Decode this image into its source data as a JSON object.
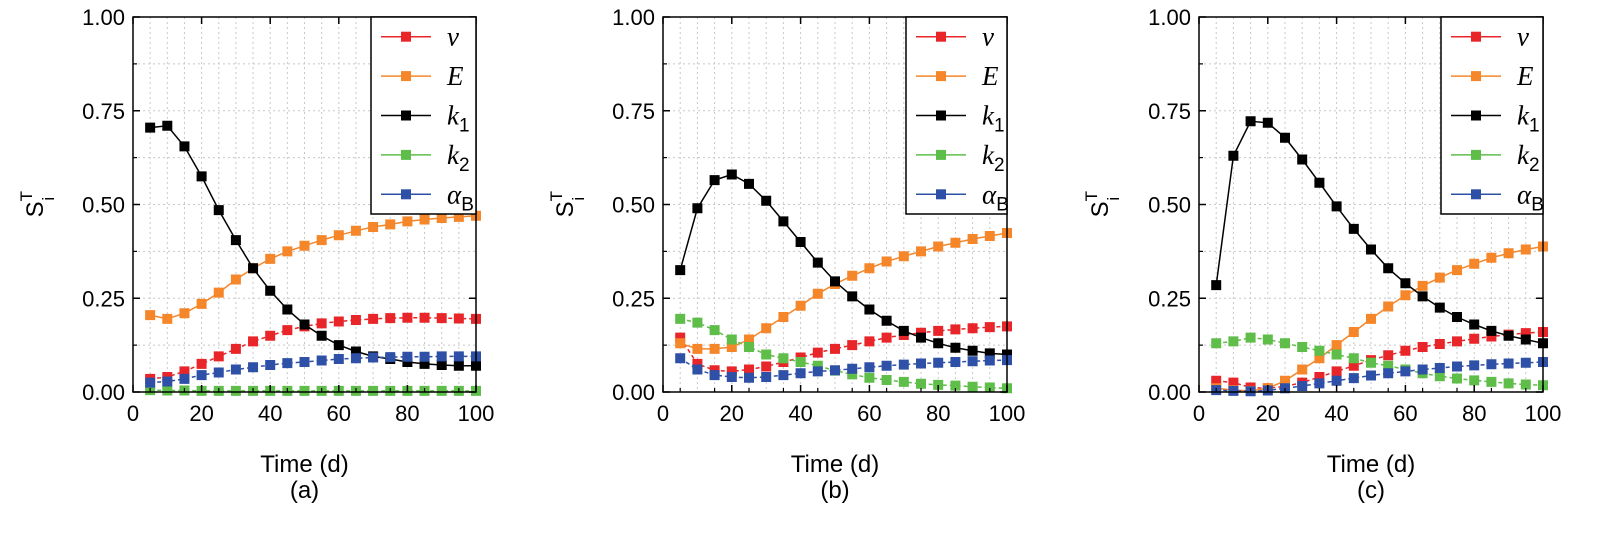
{
  "figure": {
    "colors": {
      "v": "#e8262a",
      "E": "#f5862a",
      "k1": "#000000",
      "k2": "#5fbd4a",
      "alphaB": "#2e50a6"
    },
    "series_keys": [
      "v",
      "E",
      "k1",
      "k2",
      "alphaB"
    ]
  },
  "chart_data": [
    {
      "type": "line",
      "panel_label": "(a)",
      "xlabel": "Time (d)",
      "ylabel": {
        "main": "S",
        "sup": "T",
        "sub": "i"
      },
      "xlim": [
        0,
        100
      ],
      "ylim": [
        0,
        1
      ],
      "xticks": [
        "0",
        "20",
        "40",
        "60",
        "80",
        "100"
      ],
      "yticks": [
        "0.00",
        "0.25",
        "0.50",
        "0.75",
        "1.00"
      ],
      "grid": true,
      "legend_position": "top-right",
      "x": [
        5,
        10,
        15,
        20,
        25,
        30,
        35,
        40,
        45,
        50,
        55,
        60,
        65,
        70,
        75,
        80,
        85,
        90,
        95,
        100
      ],
      "series": [
        {
          "key": "v",
          "name": "v",
          "style": "dashed",
          "values": [
            0.035,
            0.04,
            0.055,
            0.075,
            0.095,
            0.115,
            0.135,
            0.15,
            0.165,
            0.175,
            0.183,
            0.188,
            0.192,
            0.195,
            0.197,
            0.198,
            0.198,
            0.197,
            0.196,
            0.195
          ]
        },
        {
          "key": "E",
          "name": "E",
          "style": "solid-dashed",
          "values": [
            0.205,
            0.195,
            0.21,
            0.235,
            0.265,
            0.3,
            0.33,
            0.355,
            0.375,
            0.39,
            0.405,
            0.418,
            0.43,
            0.44,
            0.447,
            0.455,
            0.46,
            0.464,
            0.467,
            0.47
          ]
        },
        {
          "key": "k1",
          "name": "k1",
          "style": "solid",
          "values": [
            0.705,
            0.71,
            0.655,
            0.575,
            0.485,
            0.405,
            0.33,
            0.27,
            0.22,
            0.18,
            0.15,
            0.125,
            0.108,
            0.095,
            0.088,
            0.08,
            0.075,
            0.072,
            0.07,
            0.07
          ]
        },
        {
          "key": "k2",
          "name": "k2",
          "style": "dashed",
          "values": [
            0.005,
            0.004,
            0.004,
            0.003,
            0.003,
            0.003,
            0.003,
            0.003,
            0.003,
            0.003,
            0.003,
            0.003,
            0.003,
            0.003,
            0.003,
            0.003,
            0.003,
            0.003,
            0.003,
            0.003
          ]
        },
        {
          "key": "alphaB",
          "name": "αB",
          "style": "dashed",
          "values": [
            0.025,
            0.028,
            0.035,
            0.045,
            0.052,
            0.06,
            0.066,
            0.072,
            0.077,
            0.08,
            0.084,
            0.088,
            0.09,
            0.092,
            0.093,
            0.094,
            0.094,
            0.095,
            0.095,
            0.095
          ]
        }
      ],
      "legend": [
        {
          "key": "v",
          "label": "v",
          "sub": ""
        },
        {
          "key": "E",
          "label": "E",
          "sub": ""
        },
        {
          "key": "k1",
          "label": "k",
          "sub": "1"
        },
        {
          "key": "k2",
          "label": "k",
          "sub": "2"
        },
        {
          "key": "alphaB",
          "label": "α",
          "sub": "B"
        }
      ]
    },
    {
      "type": "line",
      "panel_label": "(b)",
      "xlabel": "Time (d)",
      "ylabel": {
        "main": "S",
        "sup": "T",
        "sub": "i"
      },
      "xlim": [
        0,
        100
      ],
      "ylim": [
        0,
        1
      ],
      "xticks": [
        "0",
        "20",
        "40",
        "60",
        "80",
        "100"
      ],
      "yticks": [
        "0.00",
        "0.25",
        "0.50",
        "0.75",
        "1.00"
      ],
      "grid": true,
      "legend_position": "top-right",
      "x": [
        5,
        10,
        15,
        20,
        25,
        30,
        35,
        40,
        45,
        50,
        55,
        60,
        65,
        70,
        75,
        80,
        85,
        90,
        95,
        100
      ],
      "series": [
        {
          "key": "v",
          "name": "v",
          "style": "dashed",
          "values": [
            0.145,
            0.075,
            0.058,
            0.055,
            0.06,
            0.068,
            0.08,
            0.092,
            0.105,
            0.115,
            0.125,
            0.135,
            0.145,
            0.152,
            0.158,
            0.163,
            0.167,
            0.17,
            0.173,
            0.175
          ]
        },
        {
          "key": "E",
          "name": "E",
          "style": "solid-dashed",
          "values": [
            0.13,
            0.115,
            0.115,
            0.12,
            0.14,
            0.17,
            0.2,
            0.23,
            0.262,
            0.288,
            0.31,
            0.33,
            0.348,
            0.362,
            0.375,
            0.388,
            0.398,
            0.408,
            0.416,
            0.424
          ]
        },
        {
          "key": "k1",
          "name": "k1",
          "style": "solid",
          "values": [
            0.325,
            0.49,
            0.565,
            0.58,
            0.555,
            0.51,
            0.455,
            0.4,
            0.345,
            0.295,
            0.255,
            0.22,
            0.19,
            0.163,
            0.145,
            0.13,
            0.118,
            0.11,
            0.103,
            0.1
          ]
        },
        {
          "key": "k2",
          "name": "k2",
          "style": "dashed",
          "values": [
            0.195,
            0.185,
            0.165,
            0.14,
            0.12,
            0.1,
            0.09,
            0.08,
            0.07,
            0.057,
            0.047,
            0.038,
            0.032,
            0.027,
            0.022,
            0.019,
            0.017,
            0.014,
            0.012,
            0.01
          ]
        },
        {
          "key": "alphaB",
          "name": "αB",
          "style": "dashed",
          "values": [
            0.09,
            0.06,
            0.045,
            0.04,
            0.038,
            0.04,
            0.045,
            0.05,
            0.055,
            0.058,
            0.062,
            0.066,
            0.07,
            0.073,
            0.076,
            0.078,
            0.08,
            0.082,
            0.084,
            0.085
          ]
        }
      ],
      "legend": [
        {
          "key": "v",
          "label": "v",
          "sub": ""
        },
        {
          "key": "E",
          "label": "E",
          "sub": ""
        },
        {
          "key": "k1",
          "label": "k",
          "sub": "1"
        },
        {
          "key": "k2",
          "label": "k",
          "sub": "2"
        },
        {
          "key": "alphaB",
          "label": "α",
          "sub": "B"
        }
      ]
    },
    {
      "type": "line",
      "panel_label": "(c)",
      "xlabel": "Time (d)",
      "ylabel": {
        "main": "S",
        "sup": "T",
        "sub": "i"
      },
      "xlim": [
        0,
        100
      ],
      "ylim": [
        0,
        1
      ],
      "xticks": [
        "0",
        "20",
        "40",
        "60",
        "80",
        "100"
      ],
      "yticks": [
        "0.00",
        "0.25",
        "0.50",
        "0.75",
        "1.00"
      ],
      "grid": true,
      "legend_position": "top-right",
      "x": [
        5,
        10,
        15,
        20,
        25,
        30,
        35,
        40,
        45,
        50,
        55,
        60,
        65,
        70,
        75,
        80,
        85,
        90,
        95,
        100
      ],
      "series": [
        {
          "key": "v",
          "name": "v",
          "style": "dashed",
          "values": [
            0.03,
            0.025,
            0.012,
            0.01,
            0.015,
            0.025,
            0.04,
            0.055,
            0.07,
            0.085,
            0.098,
            0.11,
            0.12,
            0.128,
            0.135,
            0.142,
            0.148,
            0.153,
            0.157,
            0.16
          ]
        },
        {
          "key": "E",
          "name": "E",
          "style": "solid-dashed",
          "values": [
            0.01,
            0.005,
            0.003,
            0.01,
            0.03,
            0.06,
            0.09,
            0.125,
            0.16,
            0.195,
            0.228,
            0.258,
            0.283,
            0.305,
            0.325,
            0.342,
            0.358,
            0.37,
            0.38,
            0.388
          ]
        },
        {
          "key": "k1",
          "name": "k1",
          "style": "solid",
          "values": [
            0.285,
            0.63,
            0.722,
            0.718,
            0.678,
            0.62,
            0.558,
            0.495,
            0.435,
            0.38,
            0.33,
            0.29,
            0.255,
            0.225,
            0.2,
            0.18,
            0.163,
            0.15,
            0.14,
            0.13
          ]
        },
        {
          "key": "k2",
          "name": "k2",
          "style": "dashed",
          "values": [
            0.13,
            0.135,
            0.145,
            0.14,
            0.13,
            0.12,
            0.11,
            0.1,
            0.09,
            0.078,
            0.07,
            0.06,
            0.05,
            0.042,
            0.036,
            0.031,
            0.027,
            0.023,
            0.02,
            0.018
          ]
        },
        {
          "key": "alphaB",
          "name": "αB",
          "style": "dashed",
          "values": [
            0.005,
            0.003,
            0.002,
            0.004,
            0.01,
            0.016,
            0.023,
            0.03,
            0.037,
            0.044,
            0.05,
            0.055,
            0.06,
            0.064,
            0.068,
            0.071,
            0.074,
            0.076,
            0.078,
            0.08
          ]
        }
      ],
      "legend": [
        {
          "key": "v",
          "label": "v",
          "sub": ""
        },
        {
          "key": "E",
          "label": "E",
          "sub": ""
        },
        {
          "key": "k1",
          "label": "k",
          "sub": "1"
        },
        {
          "key": "k2",
          "label": "k",
          "sub": "2"
        },
        {
          "key": "alphaB",
          "label": "α",
          "sub": "B"
        }
      ]
    }
  ]
}
